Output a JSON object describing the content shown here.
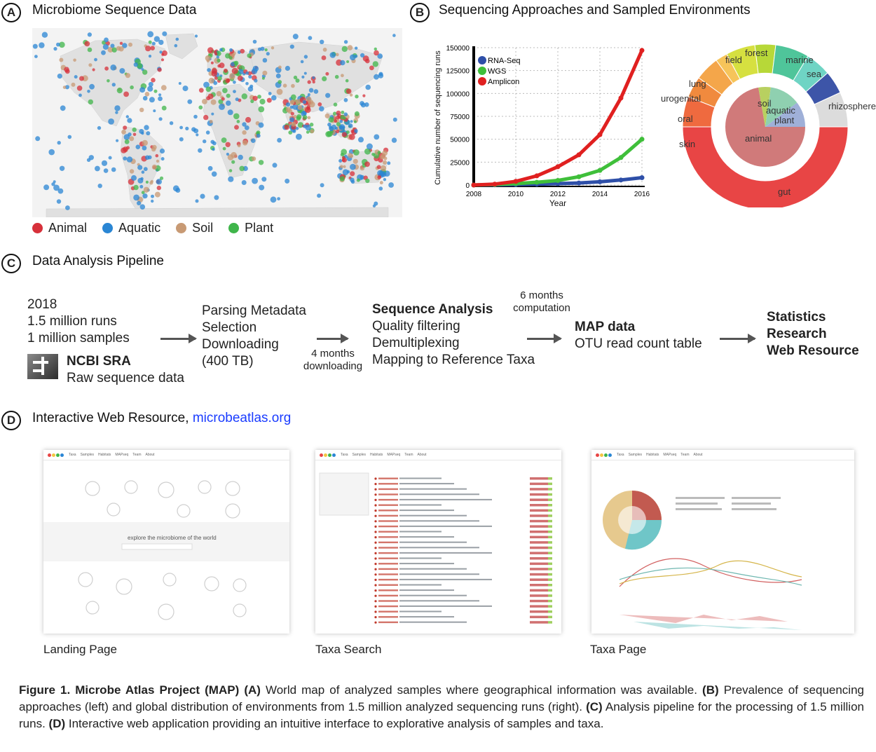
{
  "panel_a": {
    "letter": "A",
    "title": "Microbiome Sequence Data",
    "legend": [
      {
        "label": "Animal",
        "color": "#d7303a"
      },
      {
        "label": "Aquatic",
        "color": "#2a86d4"
      },
      {
        "label": "Soil",
        "color": "#c89a74"
      },
      {
        "label": "Plant",
        "color": "#3fb54a"
      }
    ]
  },
  "panel_b": {
    "letter": "B",
    "title": "Sequencing Approaches and Sampled Environments",
    "sunburst_inner": [
      "soil",
      "aquatic",
      "plant",
      "animal"
    ],
    "sunburst_outer": [
      "forest",
      "field",
      "marine",
      "sea",
      "rhizosphere",
      "lung",
      "urogenital",
      "oral",
      "skin",
      "gut"
    ]
  },
  "chart_data": {
    "type": "line",
    "x": [
      2008,
      2009,
      2010,
      2011,
      2012,
      2013,
      2014,
      2015,
      2016
    ],
    "series": [
      {
        "name": "RNA-Seq",
        "color": "#2e4fa8",
        "values": [
          0,
          200,
          500,
          900,
          1500,
          2200,
          3500,
          5500,
          8000
        ]
      },
      {
        "name": "WGS",
        "color": "#3fbf3a",
        "values": [
          0,
          500,
          1500,
          3000,
          5000,
          9000,
          16000,
          30000,
          50000
        ]
      },
      {
        "name": "Amplicon",
        "color": "#e02020",
        "values": [
          0,
          1000,
          4000,
          10000,
          20000,
          33000,
          55000,
          95000,
          147000
        ]
      }
    ],
    "xlabel": "Year",
    "ylabel": "Cumulative number of sequencing runs",
    "xticks": [
      "2008",
      "2010",
      "2012",
      "2014",
      "2016"
    ],
    "yticks": [
      "0",
      "25000",
      "50000",
      "75000",
      "100000",
      "125000",
      "150000"
    ],
    "xlim": [
      2008,
      2016
    ],
    "ylim": [
      0,
      150000
    ],
    "grid": true,
    "legend_position": "top-left"
  },
  "panel_c": {
    "letter": "C",
    "title": "Data Analysis Pipeline",
    "stage1": {
      "year": "2018",
      "runs": "1.5 million runs",
      "samples": "1 million samples",
      "sra": "NCBI SRA",
      "raw": "Raw sequence data"
    },
    "stage2": {
      "line1": "Parsing Metadata",
      "line2": "Selection",
      "line3": "Downloading",
      "line4": "(400 TB)"
    },
    "note1": {
      "line1": "4 months",
      "line2": "downloading"
    },
    "stage3": {
      "title": "Sequence Analysis",
      "line1": "Quality filtering",
      "line2": "Demultiplexing",
      "line3": "Mapping to Reference Taxa"
    },
    "note2": {
      "line1": "6 months",
      "line2": "computation"
    },
    "stage4": {
      "title": "MAP data",
      "line1": "OTU read count table"
    },
    "stage5": {
      "line1": "Statistics",
      "line2": "Research",
      "line3": "Web Resource"
    }
  },
  "panel_d": {
    "letter": "D",
    "title": "Interactive Web Resource,",
    "link": "microbeatlas.org",
    "nav": [
      "Taxa",
      "Samples",
      "Habitats",
      "MAPseq",
      "Team",
      "About"
    ],
    "landing_tagline": "explore the microbiome of the world",
    "captions": [
      "Landing Page",
      "Taxa Search",
      "Taxa Page"
    ]
  },
  "caption": {
    "fig": "Figure 1. Microbe Atlas Project (MAP)",
    "a_label": "(A)",
    "a_text": "World map of analyzed samples where geographical information was available.",
    "b_label": "(B)",
    "b_text": "Prevalence of sequencing approaches (left) and global distribution of environments from 1.5 million analyzed sequencing runs (right).",
    "c_label": "(C)",
    "c_text": "Analysis pipeline for the processing of 1.5 million runs.",
    "d_label": "(D)",
    "d_text": "Interactive web application providing an intuitive interface to explorative analysis of samples and taxa."
  }
}
